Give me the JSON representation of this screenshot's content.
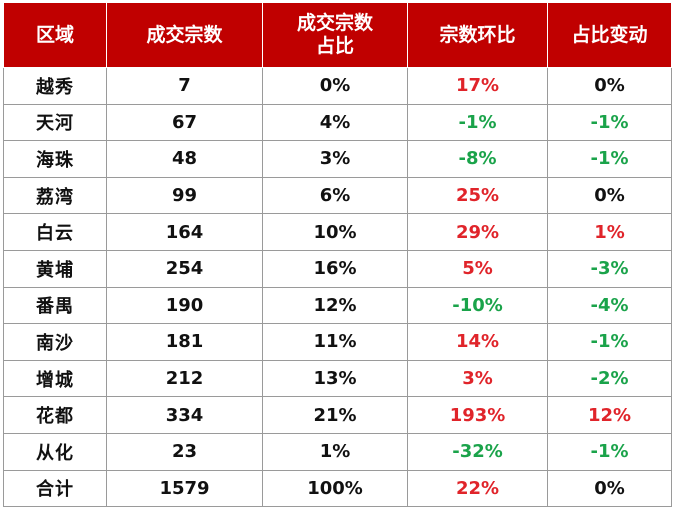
{
  "colors": {
    "header_bg": "#c00000",
    "increase": "#e0242a",
    "decrease": "#1aa34a"
  },
  "table": {
    "headers": [
      "区域",
      "成交宗数",
      "成交宗数\n占比",
      "宗数环比",
      "占比变动"
    ],
    "rows": [
      {
        "region": "越秀",
        "count": "7",
        "share": "0%",
        "count_mom": "17%",
        "count_mom_trend": "up",
        "share_change": "0%",
        "share_change_trend": "flat"
      },
      {
        "region": "天河",
        "count": "67",
        "share": "4%",
        "count_mom": "-1%",
        "count_mom_trend": "down",
        "share_change": "-1%",
        "share_change_trend": "down"
      },
      {
        "region": "海珠",
        "count": "48",
        "share": "3%",
        "count_mom": "-8%",
        "count_mom_trend": "down",
        "share_change": "-1%",
        "share_change_trend": "down"
      },
      {
        "region": "荔湾",
        "count": "99",
        "share": "6%",
        "count_mom": "25%",
        "count_mom_trend": "up",
        "share_change": "0%",
        "share_change_trend": "flat"
      },
      {
        "region": "白云",
        "count": "164",
        "share": "10%",
        "count_mom": "29%",
        "count_mom_trend": "up",
        "share_change": "1%",
        "share_change_trend": "up"
      },
      {
        "region": "黄埔",
        "count": "254",
        "share": "16%",
        "count_mom": "5%",
        "count_mom_trend": "up",
        "share_change": "-3%",
        "share_change_trend": "down"
      },
      {
        "region": "番禺",
        "count": "190",
        "share": "12%",
        "count_mom": "-10%",
        "count_mom_trend": "down",
        "share_change": "-4%",
        "share_change_trend": "down"
      },
      {
        "region": "南沙",
        "count": "181",
        "share": "11%",
        "count_mom": "14%",
        "count_mom_trend": "up",
        "share_change": "-1%",
        "share_change_trend": "down"
      },
      {
        "region": "增城",
        "count": "212",
        "share": "13%",
        "count_mom": "3%",
        "count_mom_trend": "up",
        "share_change": "-2%",
        "share_change_trend": "down"
      },
      {
        "region": "花都",
        "count": "334",
        "share": "21%",
        "count_mom": "193%",
        "count_mom_trend": "up",
        "share_change": "12%",
        "share_change_trend": "up"
      },
      {
        "region": "从化",
        "count": "23",
        "share": "1%",
        "count_mom": "-32%",
        "count_mom_trend": "down",
        "share_change": "-1%",
        "share_change_trend": "down"
      },
      {
        "region": "合计",
        "count": "1579",
        "share": "100%",
        "count_mom": "22%",
        "count_mom_trend": "up",
        "share_change": "0%",
        "share_change_trend": "flat"
      }
    ]
  }
}
